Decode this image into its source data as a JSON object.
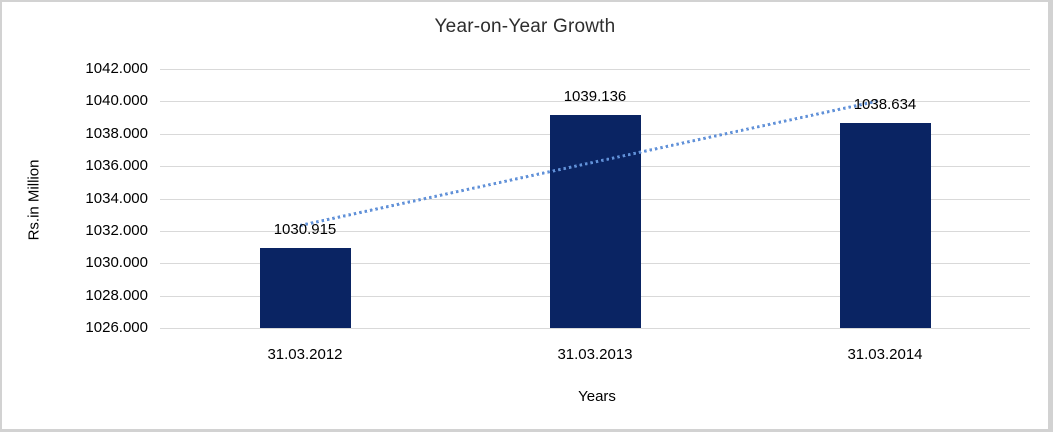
{
  "chart_data": {
    "type": "bar",
    "title": "Year-on-Year Growth",
    "xlabel": "Years",
    "ylabel": "Rs.in Million",
    "categories": [
      "31.03.2012",
      "31.03.2013",
      "31.03.2014"
    ],
    "values": [
      1030.915,
      1039.136,
      1038.634
    ],
    "value_labels": [
      "1030.915",
      "1039.136",
      "1038.634"
    ],
    "ylim": [
      1026,
      1042
    ],
    "ytick_step": 2,
    "ytick_labels": [
      "1026.000",
      "1028.000",
      "1030.000",
      "1032.000",
      "1034.000",
      "1036.000",
      "1038.000",
      "1040.000",
      "1042.000"
    ],
    "grid": true,
    "legend": "none",
    "trendline_style": "dotted-linear",
    "colors": {
      "bar": "#0a2463",
      "trendline": "#6191d8",
      "gridline": "#d9d9d9",
      "frame_border": "#d2d2d2"
    }
  }
}
